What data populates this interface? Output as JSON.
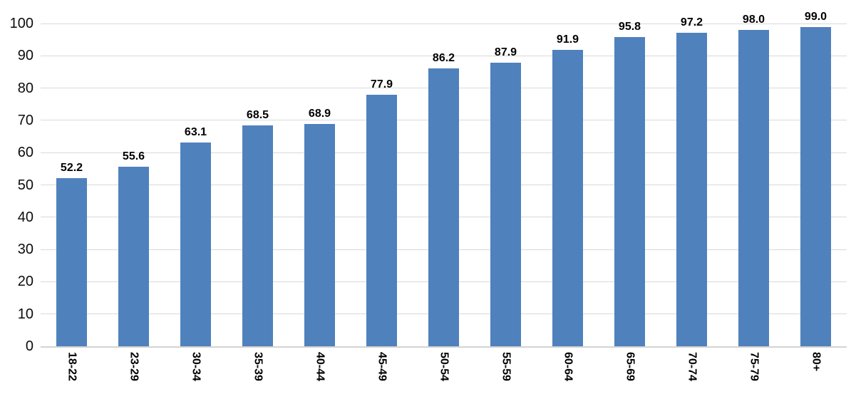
{
  "chart_data": {
    "type": "bar",
    "title": "",
    "xlabel": "",
    "ylabel": "",
    "categories": [
      "18-22",
      "23-29",
      "30-34",
      "35-39",
      "40-44",
      "45-49",
      "50-54",
      "55-59",
      "60-64",
      "65-69",
      "70-74",
      "75-79",
      "80+"
    ],
    "values": [
      52.2,
      55.6,
      63.1,
      68.5,
      68.9,
      77.9,
      86.2,
      87.9,
      91.9,
      95.8,
      97.2,
      98.0,
      99.0
    ],
    "data_labels": [
      "52.2",
      "55.6",
      "63.1",
      "68.5",
      "68.9",
      "77.9",
      "86.2",
      "87.9",
      "91.9",
      "95.8",
      "97.2",
      "98.0",
      "99.0"
    ],
    "y_ticks": [
      0,
      10,
      20,
      30,
      40,
      50,
      60,
      70,
      80,
      90,
      100
    ],
    "y_tick_labels": [
      "0",
      "10",
      "20",
      "30",
      "40",
      "50",
      "60",
      "70",
      "80",
      "90",
      "100"
    ],
    "ylim": [
      0,
      100
    ],
    "grid": true,
    "legend": false,
    "bar_color": "#4f81bd",
    "gridline_color": "#d9d9d9",
    "axis_line_color": "#d3d3d3",
    "tick_label_color": "#0d0d0d",
    "data_label_color": "#000000",
    "background_color": "#ffffff"
  }
}
